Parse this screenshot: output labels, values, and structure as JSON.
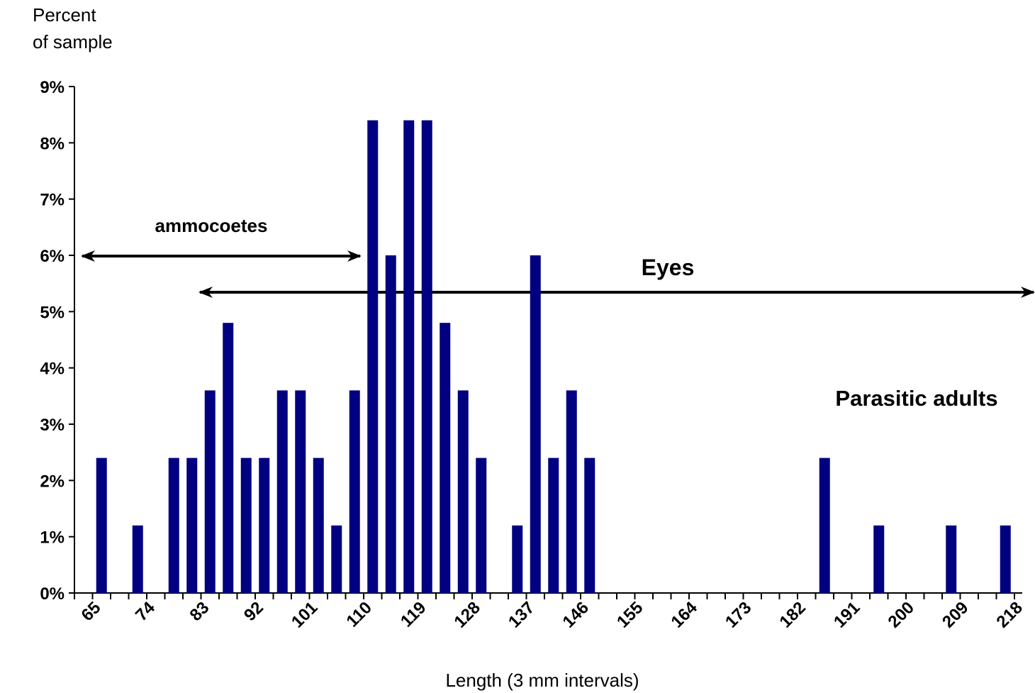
{
  "chart_data": {
    "type": "bar",
    "y_label": [
      "Percent",
      "of sample"
    ],
    "x_label": "Length (3 mm intervals)",
    "annotations": [
      "ammocoetes",
      "Eyes",
      "Parasitic adults"
    ],
    "categories": [
      null,
      "65",
      null,
      null,
      "74",
      null,
      null,
      "83",
      null,
      null,
      "92",
      null,
      null,
      "101",
      null,
      null,
      "110",
      null,
      null,
      "119",
      null,
      null,
      "128",
      null,
      null,
      "137",
      null,
      null,
      "146",
      null,
      null,
      "155",
      null,
      null,
      "164",
      null,
      null,
      "173",
      null,
      null,
      "182",
      null,
      null,
      "191",
      null,
      null,
      "200",
      null,
      null,
      "209",
      null,
      null,
      "218"
    ],
    "values": [
      0,
      2.4,
      0,
      1.2,
      0,
      2.4,
      2.4,
      3.6,
      4.8,
      2.4,
      2.4,
      3.6,
      3.6,
      2.4,
      1.2,
      3.6,
      8.4,
      6.0,
      8.4,
      8.4,
      4.8,
      3.6,
      2.4,
      0,
      1.2,
      6.0,
      2.4,
      3.6,
      2.4,
      0,
      0,
      0,
      0,
      0,
      0,
      0,
      0,
      0,
      0,
      0,
      0,
      2.4,
      0,
      0,
      1.2,
      0,
      0,
      0,
      1.2,
      0,
      0,
      1.2,
      0
    ],
    "color": "#000080",
    "ylim": [
      0,
      9
    ],
    "yticks": [
      {
        "value": 0,
        "label": "0%"
      },
      {
        "value": 1,
        "label": "1%"
      },
      {
        "value": 2,
        "label": "2%"
      },
      {
        "value": 3,
        "label": "3%"
      },
      {
        "value": 4,
        "label": "4%"
      },
      {
        "value": 5,
        "label": "5%"
      },
      {
        "value": 6,
        "label": "6%"
      },
      {
        "value": 7,
        "label": "7%"
      },
      {
        "value": 8,
        "label": "8%"
      },
      {
        "value": 9,
        "label": "9%"
      }
    ],
    "grid": false
  }
}
